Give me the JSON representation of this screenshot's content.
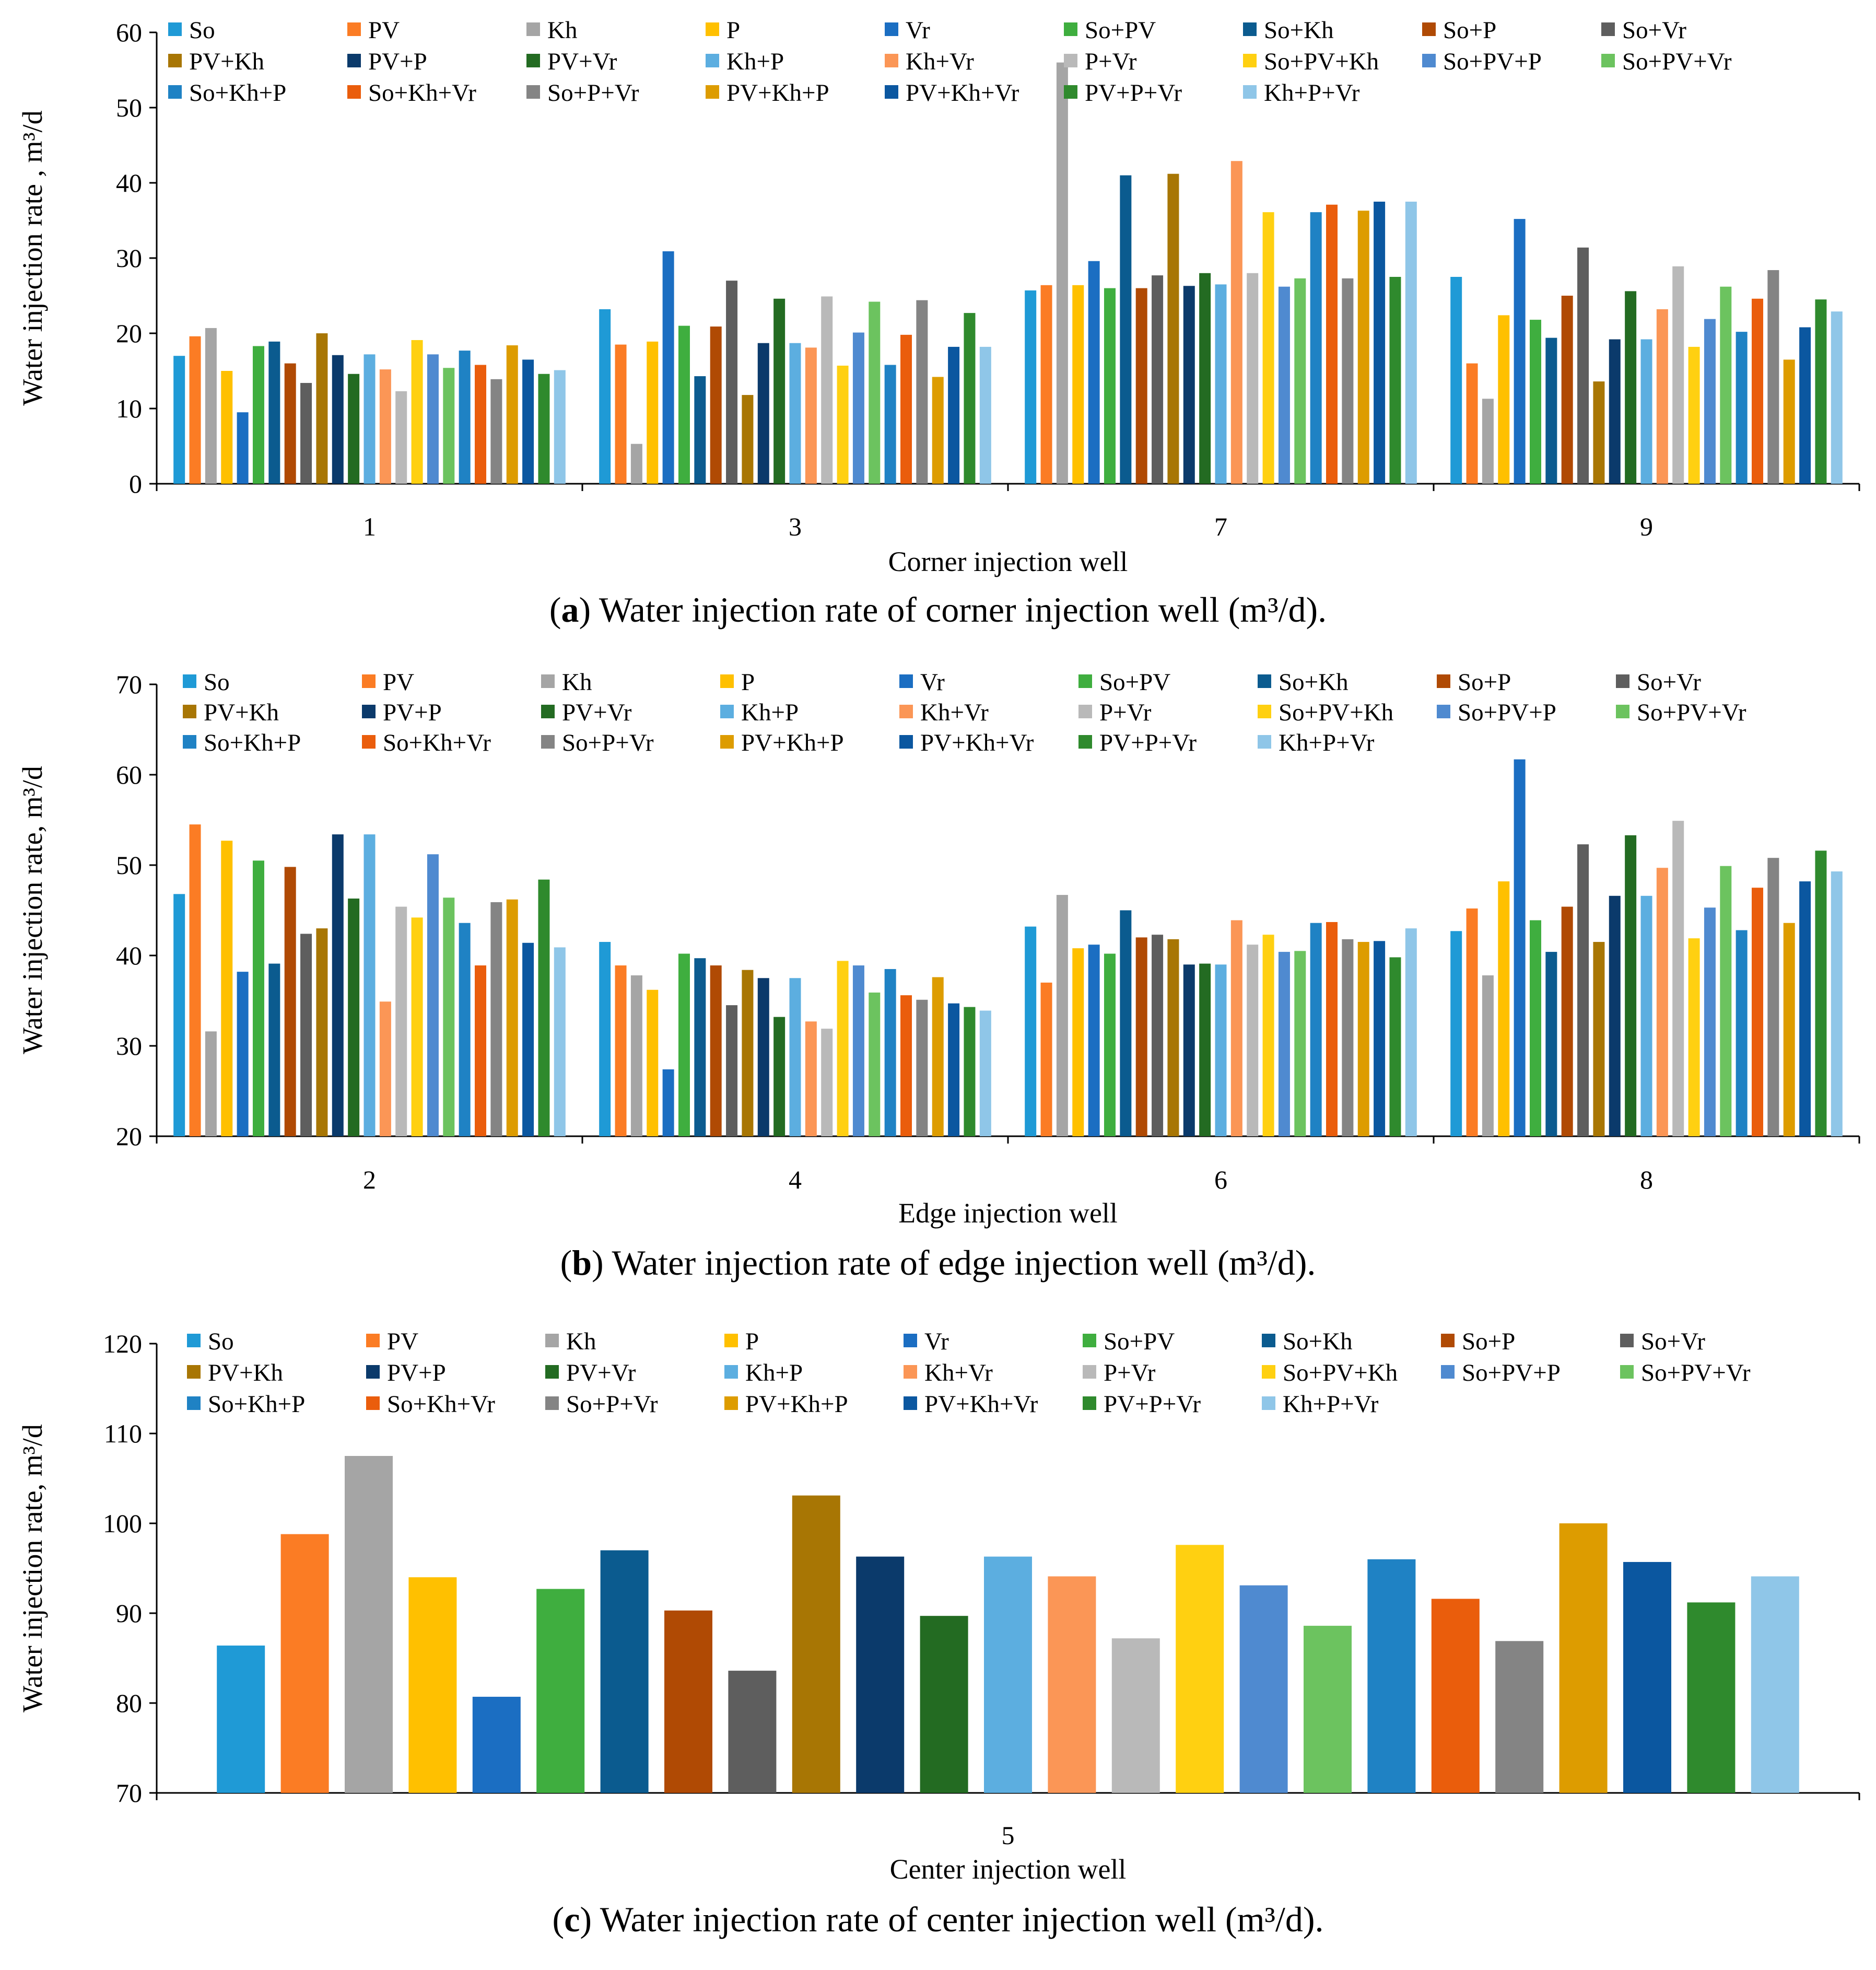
{
  "series_names": [
    "So",
    "PV",
    "Kh",
    "P",
    "Vr",
    "So+PV",
    "So+Kh",
    "So+P",
    "So+Vr",
    "PV+Kh",
    "PV+P",
    "PV+Vr",
    "Kh+P",
    "Kh+Vr",
    "P+Vr",
    "So+PV+Kh",
    "So+PV+P",
    "So+PV+Vr",
    "So+Kh+P",
    "So+Kh+Vr",
    "So+P+Vr",
    "PV+Kh+P",
    "PV+Kh+Vr",
    "PV+P+Vr",
    "Kh+P+Vr"
  ],
  "series_colors": [
    "#1f9ad6",
    "#fb7c24",
    "#a5a5a5",
    "#ffc000",
    "#1b6ec2",
    "#3fae3f",
    "#0b5b8f",
    "#b04a04",
    "#5e5e5e",
    "#a87604",
    "#0b3a6b",
    "#236b22",
    "#5caee0",
    "#fb9656",
    "#b9b9b9",
    "#ffd011",
    "#4f8ad0",
    "#6cc35f",
    "#1f82c4",
    "#ea5d0c",
    "#848484",
    "#dd9c00",
    "#0b57a0",
    "#2f8a2d",
    "#8fc6e8"
  ],
  "chart_data": [
    {
      "type": "bar",
      "panel": "a",
      "caption_letter": "a",
      "caption_text": ") Water injection rate of corner injection well (m³/d).",
      "xlabel": "Corner injection well",
      "ylabel": "Water injection rate , m³/d",
      "ylim": [
        0,
        60
      ],
      "yticks": [
        0,
        10,
        20,
        30,
        40,
        50,
        60
      ],
      "categories": [
        "1",
        "3",
        "7",
        "9"
      ],
      "series": [
        {
          "name": "So",
          "values": [
            17,
            23.2,
            25.7,
            27.5
          ]
        },
        {
          "name": "PV",
          "values": [
            19.6,
            18.5,
            26.4,
            16
          ]
        },
        {
          "name": "Kh",
          "values": [
            20.7,
            5.3,
            56,
            11.3
          ]
        },
        {
          "name": "P",
          "values": [
            15,
            18.9,
            26.4,
            22.4
          ]
        },
        {
          "name": "Vr",
          "values": [
            9.5,
            30.9,
            29.6,
            35.2
          ]
        },
        {
          "name": "So+PV",
          "values": [
            18.3,
            21,
            26,
            21.8
          ]
        },
        {
          "name": "So+Kh",
          "values": [
            18.9,
            14.3,
            41,
            19.4
          ]
        },
        {
          "name": "So+P",
          "values": [
            16,
            20.9,
            26,
            25
          ]
        },
        {
          "name": "So+Vr",
          "values": [
            13.4,
            27,
            27.7,
            31.4
          ]
        },
        {
          "name": "PV+Kh",
          "values": [
            20,
            11.8,
            41.2,
            13.6
          ]
        },
        {
          "name": "PV+P",
          "values": [
            17.1,
            18.7,
            26.3,
            19.2
          ]
        },
        {
          "name": "PV+Vr",
          "values": [
            14.6,
            24.6,
            28,
            25.6
          ]
        },
        {
          "name": "Kh+P",
          "values": [
            17.2,
            18.7,
            26.5,
            19.2
          ]
        },
        {
          "name": "Kh+Vr",
          "values": [
            15.2,
            18.1,
            42.9,
            23.2
          ]
        },
        {
          "name": "P+Vr",
          "values": [
            12.3,
            24.9,
            28,
            28.9
          ]
        },
        {
          "name": "So+PV+Kh",
          "values": [
            19.1,
            15.7,
            36.1,
            18.2
          ]
        },
        {
          "name": "So+PV+P",
          "values": [
            17.2,
            20.1,
            26.2,
            21.9
          ]
        },
        {
          "name": "So+PV+Vr",
          "values": [
            15.4,
            24.2,
            27.3,
            26.2
          ]
        },
        {
          "name": "So+Kh+P",
          "values": [
            17.7,
            15.8,
            36.1,
            20.2
          ]
        },
        {
          "name": "So+Kh+Vr",
          "values": [
            15.8,
            19.8,
            37.1,
            24.6
          ]
        },
        {
          "name": "So+P+Vr",
          "values": [
            13.9,
            24.4,
            27.3,
            28.4
          ]
        },
        {
          "name": "PV+Kh+P",
          "values": [
            18.4,
            14.2,
            36.3,
            16.5
          ]
        },
        {
          "name": "PV+Kh+Vr",
          "values": [
            16.5,
            18.2,
            37.5,
            20.8
          ]
        },
        {
          "name": "PV+P+Vr",
          "values": [
            14.6,
            22.7,
            27.5,
            24.5
          ]
        },
        {
          "name": "Kh+P+Vr",
          "values": [
            15.1,
            18.2,
            37.5,
            22.9
          ]
        }
      ]
    },
    {
      "type": "bar",
      "panel": "b",
      "caption_letter": "b",
      "caption_text": ") Water injection rate of edge injection well (m³/d).",
      "xlabel": "Edge injection well",
      "ylabel": "Water injection rate, m³/d",
      "ylim": [
        20,
        70
      ],
      "yticks": [
        20,
        30,
        40,
        50,
        60,
        70
      ],
      "categories": [
        "2",
        "4",
        "6",
        "8"
      ],
      "series": [
        {
          "name": "So",
          "values": [
            46.8,
            41.5,
            43.2,
            42.7
          ]
        },
        {
          "name": "PV",
          "values": [
            54.5,
            38.9,
            37,
            45.2
          ]
        },
        {
          "name": "Kh",
          "values": [
            31.6,
            37.8,
            46.7,
            37.8
          ]
        },
        {
          "name": "P",
          "values": [
            52.7,
            36.2,
            40.8,
            48.2
          ]
        },
        {
          "name": "Vr",
          "values": [
            38.2,
            27.4,
            41.2,
            61.7
          ]
        },
        {
          "name": "So+PV",
          "values": [
            50.5,
            40.2,
            40.2,
            43.9
          ]
        },
        {
          "name": "So+Kh",
          "values": [
            39.1,
            39.7,
            45,
            40.4
          ]
        },
        {
          "name": "So+P",
          "values": [
            49.8,
            38.9,
            42,
            45.4
          ]
        },
        {
          "name": "So+Vr",
          "values": [
            42.4,
            34.5,
            42.3,
            52.3
          ]
        },
        {
          "name": "PV+Kh",
          "values": [
            43,
            38.4,
            41.8,
            41.5
          ]
        },
        {
          "name": "PV+P",
          "values": [
            53.4,
            37.5,
            39,
            46.6
          ]
        },
        {
          "name": "PV+Vr",
          "values": [
            46.3,
            33.2,
            39.1,
            53.3
          ]
        },
        {
          "name": "Kh+P",
          "values": [
            53.4,
            37.5,
            39,
            46.6
          ]
        },
        {
          "name": "Kh+Vr",
          "values": [
            34.9,
            32.7,
            43.9,
            49.7
          ]
        },
        {
          "name": "P+Vr",
          "values": [
            45.4,
            31.9,
            41.2,
            54.9
          ]
        },
        {
          "name": "So+PV+Kh",
          "values": [
            44.2,
            39.4,
            42.3,
            41.9
          ]
        },
        {
          "name": "So+PV+P",
          "values": [
            51.2,
            38.9,
            40.4,
            45.3
          ]
        },
        {
          "name": "So+PV+Vr",
          "values": [
            46.4,
            35.9,
            40.5,
            49.9
          ]
        },
        {
          "name": "So+Kh+P",
          "values": [
            43.6,
            38.5,
            43.6,
            42.8
          ]
        },
        {
          "name": "So+Kh+Vr",
          "values": [
            38.9,
            35.6,
            43.7,
            47.5
          ]
        },
        {
          "name": "So+P+Vr",
          "values": [
            45.9,
            35.1,
            41.8,
            50.8
          ]
        },
        {
          "name": "PV+Kh+P",
          "values": [
            46.2,
            37.6,
            41.5,
            43.6
          ]
        },
        {
          "name": "PV+Kh+Vr",
          "values": [
            41.4,
            34.7,
            41.6,
            48.2
          ]
        },
        {
          "name": "PV+P+Vr",
          "values": [
            48.4,
            34.3,
            39.8,
            51.6
          ]
        },
        {
          "name": "Kh+P+Vr",
          "values": [
            40.9,
            33.9,
            43,
            49.3
          ]
        }
      ]
    },
    {
      "type": "bar",
      "panel": "c",
      "caption_letter": "c",
      "caption_text": ") Water injection rate of center injection well (m³/d).",
      "xlabel": "Center injection well",
      "ylabel": "Water injection rate, m³/d",
      "ylim": [
        70,
        120
      ],
      "yticks": [
        70,
        80,
        90,
        100,
        110,
        120
      ],
      "categories": [
        "5"
      ],
      "series": [
        {
          "name": "So",
          "values": [
            86.4
          ]
        },
        {
          "name": "PV",
          "values": [
            98.8
          ]
        },
        {
          "name": "Kh",
          "values": [
            107.5
          ]
        },
        {
          "name": "P",
          "values": [
            94
          ]
        },
        {
          "name": "Vr",
          "values": [
            80.7
          ]
        },
        {
          "name": "So+PV",
          "values": [
            92.7
          ]
        },
        {
          "name": "So+Kh",
          "values": [
            97
          ]
        },
        {
          "name": "So+P",
          "values": [
            90.3
          ]
        },
        {
          "name": "So+Vr",
          "values": [
            83.6
          ]
        },
        {
          "name": "PV+Kh",
          "values": [
            103.1
          ]
        },
        {
          "name": "PV+P",
          "values": [
            96.3
          ]
        },
        {
          "name": "PV+Vr",
          "values": [
            89.7
          ]
        },
        {
          "name": "Kh+P",
          "values": [
            96.3
          ]
        },
        {
          "name": "Kh+Vr",
          "values": [
            94.1
          ]
        },
        {
          "name": "P+Vr",
          "values": [
            87.2
          ]
        },
        {
          "name": "So+PV+Kh",
          "values": [
            97.6
          ]
        },
        {
          "name": "So+PV+P",
          "values": [
            93.1
          ]
        },
        {
          "name": "So+PV+Vr",
          "values": [
            88.6
          ]
        },
        {
          "name": "So+Kh+P",
          "values": [
            96
          ]
        },
        {
          "name": "So+Kh+Vr",
          "values": [
            91.6
          ]
        },
        {
          "name": "So+P+Vr",
          "values": [
            86.9
          ]
        },
        {
          "name": "PV+Kh+P",
          "values": [
            100
          ]
        },
        {
          "name": "PV+Kh+Vr",
          "values": [
            95.7
          ]
        },
        {
          "name": "PV+P+Vr",
          "values": [
            91.2
          ]
        },
        {
          "name": "Kh+P+Vr",
          "values": [
            94.1
          ]
        }
      ]
    }
  ]
}
